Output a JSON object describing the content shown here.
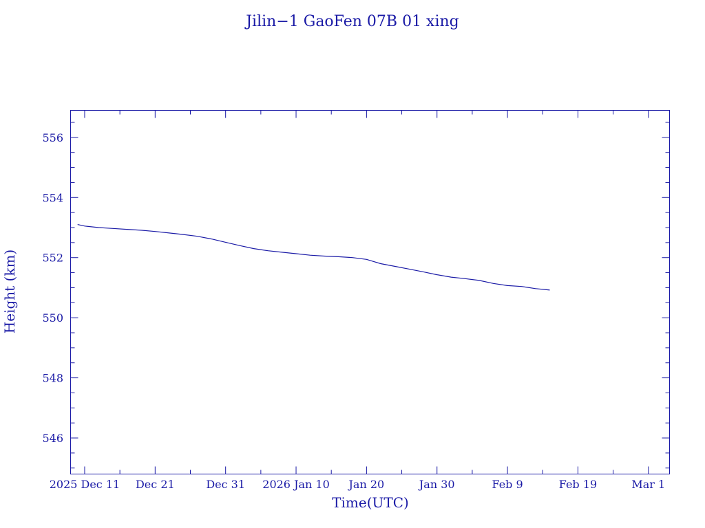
{
  "chart_data": {
    "type": "line",
    "title": "Jilin−1 GaoFen 07B 01 xing",
    "xlabel": "Time(UTC)",
    "ylabel": "Height (km)",
    "x_unit": "date",
    "xlim": [
      "2025-12-09",
      "2026-03-04"
    ],
    "ylim": [
      544.8,
      556.9
    ],
    "x_ticks": [
      {
        "date": "2025-12-11",
        "label": "2025 Dec 11"
      },
      {
        "date": "2025-12-21",
        "label": "Dec 21"
      },
      {
        "date": "2025-12-31",
        "label": "Dec 31"
      },
      {
        "date": "2026-01-10",
        "label": "2026 Jan 10"
      },
      {
        "date": "2026-01-20",
        "label": "Jan 20"
      },
      {
        "date": "2026-01-30",
        "label": "Jan 30"
      },
      {
        "date": "2026-02-09",
        "label": "Feb  9"
      },
      {
        "date": "2026-02-19",
        "label": "Feb 19"
      },
      {
        "date": "2026-03-01",
        "label": "Mar  1"
      }
    ],
    "y_ticks": [
      546,
      548,
      550,
      552,
      554,
      556
    ],
    "y_minor_step": 0.5,
    "grid": false,
    "legend": "none",
    "series_color": "#1a1aa6",
    "series": [
      {
        "x": [
          "2025-12-10",
          "2025-12-11",
          "2025-12-13",
          "2025-12-15",
          "2025-12-17",
          "2025-12-19",
          "2025-12-21",
          "2025-12-23",
          "2025-12-25",
          "2025-12-27",
          "2025-12-29",
          "2025-12-31",
          "2026-01-02",
          "2026-01-04",
          "2026-01-06",
          "2026-01-08",
          "2026-01-10",
          "2026-01-12",
          "2026-01-14",
          "2026-01-16",
          "2026-01-18",
          "2026-01-20",
          "2026-01-22",
          "2026-01-24",
          "2026-01-26",
          "2026-01-28",
          "2026-01-30",
          "2026-02-01",
          "2026-02-03",
          "2026-02-05",
          "2026-02-07",
          "2026-02-09",
          "2026-02-11",
          "2026-02-13",
          "2026-02-15"
        ],
        "y": [
          553.1,
          553.05,
          553.0,
          552.97,
          552.94,
          552.91,
          552.87,
          552.82,
          552.77,
          552.71,
          552.62,
          552.51,
          552.4,
          552.3,
          552.23,
          552.18,
          552.13,
          552.08,
          552.05,
          552.03,
          552.0,
          551.94,
          551.8,
          551.71,
          551.62,
          551.53,
          551.43,
          551.35,
          551.3,
          551.24,
          551.14,
          551.07,
          551.04,
          550.97,
          550.92
        ]
      }
    ]
  }
}
